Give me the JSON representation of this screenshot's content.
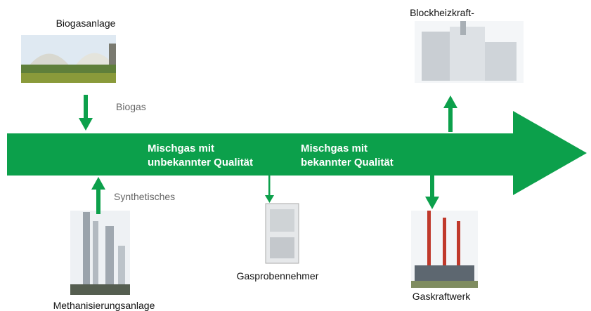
{
  "nodes": [
    {
      "label": "Biogasanlage"
    },
    {
      "label": "Blockheizkraft-"
    },
    {
      "label": "Methanisierungsanlage"
    },
    {
      "label": "Gasprobennehmer"
    },
    {
      "label": "Gaskraftwerk"
    }
  ],
  "flows": [
    {
      "label": "Biogas"
    },
    {
      "label": "Synthetisches"
    }
  ],
  "main_flow": {
    "segments": [
      {
        "lines": [
          "Mischgas mit",
          "unbekannter Qualität"
        ]
      },
      {
        "lines": [
          "Mischgas mit",
          "bekannter Qualität"
        ]
      }
    ]
  }
}
